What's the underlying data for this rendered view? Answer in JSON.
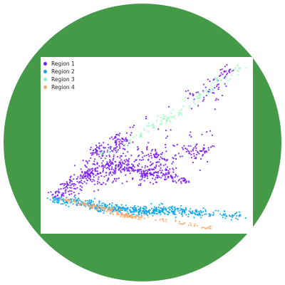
{
  "colors": {
    "badge_background": "#449a47",
    "plot_background": "#ffffff"
  },
  "chart_data": {
    "type": "scatter",
    "title": "",
    "xlabel": "",
    "ylabel": "",
    "grid": false,
    "axes_visible": false,
    "legend_placement": "top-left",
    "series": [
      {
        "name": "Region 1",
        "color": "#7a1cf7",
        "point_count_estimate": 6000,
        "distribution": "dense wedge widening to the right, upper band above Region 2",
        "sample_points": [
          [
            0.05,
            0.2
          ],
          [
            0.1,
            0.27
          ],
          [
            0.2,
            0.33
          ],
          [
            0.3,
            0.38
          ],
          [
            0.4,
            0.36
          ],
          [
            0.5,
            0.33
          ],
          [
            0.6,
            0.32
          ],
          [
            0.7,
            0.29
          ],
          [
            0.35,
            0.55
          ],
          [
            0.25,
            0.48
          ],
          [
            0.55,
            0.45
          ],
          [
            0.8,
            0.48
          ],
          [
            0.9,
            0.95
          ]
        ]
      },
      {
        "name": "Region 2",
        "color": "#12a6e8",
        "point_count_estimate": 3500,
        "distribution": "horizontal band beneath Region 1",
        "sample_points": [
          [
            0.05,
            0.18
          ],
          [
            0.15,
            0.16
          ],
          [
            0.25,
            0.13
          ],
          [
            0.35,
            0.12
          ],
          [
            0.45,
            0.1
          ],
          [
            0.55,
            0.11
          ],
          [
            0.65,
            0.12
          ],
          [
            0.75,
            0.1
          ],
          [
            0.95,
            0.08
          ]
        ]
      },
      {
        "name": "Region 3",
        "color": "#86f9b5",
        "point_count_estimate": 900,
        "distribution": "sparse diagonal fan rising from lower-left to upper-right",
        "sample_points": [
          [
            0.3,
            0.45
          ],
          [
            0.45,
            0.55
          ],
          [
            0.6,
            0.65
          ],
          [
            0.75,
            0.78
          ],
          [
            0.85,
            0.88
          ],
          [
            0.95,
            0.96
          ]
        ]
      },
      {
        "name": "Region 4",
        "color": "#f9ab6d",
        "point_count_estimate": 1200,
        "distribution": "narrow diagonal ribbon at the bottom of the cluster",
        "sample_points": [
          [
            0.1,
            0.18
          ],
          [
            0.2,
            0.15
          ],
          [
            0.3,
            0.12
          ],
          [
            0.4,
            0.08
          ],
          [
            0.45,
            0.07
          ],
          [
            0.8,
            0.01
          ]
        ]
      }
    ]
  }
}
